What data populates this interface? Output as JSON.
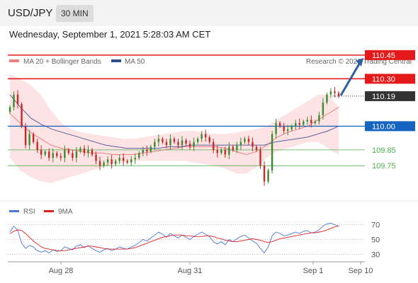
{
  "header": {
    "symbol": "USD/JPY",
    "timeframe": "30 MIN"
  },
  "datetime": "Wednesday, September 1, 2021 5:28:03 AM CET",
  "legend": {
    "ma20_label": "MA 20 + Bollinger Bands",
    "ma50_label": "MA 50",
    "credit": "Research © 2021 Trading Central"
  },
  "colors": {
    "resistance": "#e41a1a",
    "support": "#1565c0",
    "target": "#4caf50",
    "current": "#333333",
    "arrow": "#2e5f9e",
    "ma20": "#f08080",
    "ma50": "#5560a0",
    "band_fill": "#fde3e3",
    "candle_up": "#3a8a2e",
    "candle_down": "#c62828"
  },
  "chart_data": [
    {
      "type": "candlestick",
      "price_range": [
        109.5,
        110.53
      ],
      "x_labels": [
        "Aug 28",
        "Aug 31",
        "Sep 1",
        "Sep 10"
      ],
      "levels": [
        {
          "value": 110.45,
          "label": "110.45",
          "kind": "resistance"
        },
        {
          "value": 110.3,
          "label": "110.30",
          "kind": "resistance"
        },
        {
          "value": 110.19,
          "label": "110.19",
          "kind": "current"
        },
        {
          "value": 110.0,
          "label": "110.00",
          "kind": "support"
        },
        {
          "value": 109.85,
          "label": "109.85",
          "kind": "target"
        },
        {
          "value": 109.75,
          "label": "109.75",
          "kind": "target"
        }
      ],
      "close": [
        110.12,
        110.2,
        110.14,
        110.0,
        109.88,
        109.95,
        109.9,
        109.85,
        109.82,
        109.84,
        109.8,
        109.83,
        109.81,
        109.8,
        109.85,
        109.83,
        109.8,
        109.84,
        109.86,
        109.83,
        109.85,
        109.82,
        109.78,
        109.75,
        109.77,
        109.79,
        109.76,
        109.78,
        109.8,
        109.78,
        109.77,
        109.79,
        109.8,
        109.83,
        109.85,
        109.84,
        109.87,
        109.9,
        109.92,
        109.9,
        109.88,
        109.92,
        109.9,
        109.88,
        109.91,
        109.89,
        109.87,
        109.9,
        109.92,
        109.95,
        109.93,
        109.9,
        109.85,
        109.83,
        109.85,
        109.82,
        109.87,
        109.85,
        109.88,
        109.9,
        109.92,
        109.9,
        109.87,
        109.85,
        109.75,
        109.65,
        109.72,
        109.95,
        110.02,
        110.0,
        109.97,
        109.98,
        110.0,
        110.02,
        110.01,
        110.03,
        110.04,
        110.02,
        110.03,
        110.07,
        110.15,
        110.2,
        110.22,
        110.21,
        110.19
      ],
      "upper_band": [
        110.33,
        110.3,
        110.26,
        110.2,
        110.1,
        110.02,
        109.98,
        109.96,
        109.95,
        109.94,
        109.93,
        109.92,
        109.92,
        109.93,
        109.94,
        109.95,
        109.96,
        109.97,
        109.97,
        109.96,
        109.95,
        109.95,
        109.96,
        109.97,
        109.98,
        110.0,
        110.04,
        110.08,
        110.12,
        110.16,
        110.2,
        110.2,
        110.12
      ],
      "lower_band": [
        109.8,
        109.72,
        109.68,
        109.65,
        109.64,
        109.66,
        109.68,
        109.7,
        109.72,
        109.74,
        109.76,
        109.77,
        109.78,
        109.78,
        109.78,
        109.78,
        109.78,
        109.78,
        109.77,
        109.76,
        109.75,
        109.73,
        109.7,
        109.7,
        109.74,
        109.8,
        109.84,
        109.86,
        109.88,
        109.9,
        109.9,
        109.86,
        109.82
      ],
      "ma20": [
        110.08,
        110.02,
        109.96,
        109.92,
        109.88,
        109.86,
        109.85,
        109.84,
        109.83,
        109.83,
        109.82,
        109.82,
        109.82,
        109.83,
        109.84,
        109.85,
        109.86,
        109.87,
        109.87,
        109.87,
        109.87,
        109.86,
        109.84,
        109.82,
        109.84,
        109.88,
        109.93,
        109.96,
        109.98,
        110.0,
        110.04,
        110.08,
        110.12
      ],
      "ma50": [
        110.2,
        110.12,
        110.05,
        110.01,
        109.98,
        109.96,
        109.94,
        109.92,
        109.9,
        109.88,
        109.87,
        109.86,
        109.86,
        109.86,
        109.86,
        109.87,
        109.87,
        109.88,
        109.88,
        109.88,
        109.88,
        109.88,
        109.88,
        109.88,
        109.88,
        109.9,
        109.91,
        109.92,
        109.93,
        109.95,
        109.97,
        110.0
      ]
    },
    {
      "type": "line",
      "title": "RSI",
      "series": [
        {
          "name": "RSI",
          "values": [
            60,
            68,
            62,
            45,
            38,
            42,
            40,
            35,
            33,
            35,
            32,
            36,
            34,
            35,
            40,
            38,
            36,
            41,
            43,
            39,
            42,
            38,
            35,
            33,
            36,
            38,
            35,
            37,
            40,
            38,
            37,
            40,
            42,
            46,
            50,
            48,
            52,
            56,
            60,
            57,
            53,
            58,
            55,
            52,
            56,
            53,
            50,
            54,
            57,
            60,
            57,
            54,
            47,
            44,
            47,
            43,
            50,
            47,
            51,
            54,
            56,
            52,
            48,
            45,
            38,
            32,
            40,
            55,
            60,
            58,
            55,
            56,
            58,
            60,
            58,
            61,
            62,
            59,
            60,
            63,
            68,
            71,
            72,
            70,
            68
          ]
        },
        {
          "name": "9MA",
          "values": [
            58,
            61,
            63,
            62,
            58,
            53,
            48,
            44,
            40,
            38,
            37,
            36,
            35,
            35,
            35,
            36,
            37,
            38,
            39,
            40,
            41,
            41,
            40,
            39,
            38,
            37,
            37,
            37,
            37,
            37,
            37,
            38,
            39,
            41,
            43,
            45,
            47,
            49,
            51,
            53,
            54,
            55,
            56,
            56,
            56,
            55,
            55,
            54,
            54,
            54,
            55,
            55,
            54,
            52,
            51,
            49,
            48,
            47,
            47,
            48,
            49,
            50,
            51,
            50,
            49,
            47,
            46,
            47,
            49,
            51,
            52,
            53,
            54,
            55,
            56,
            57,
            58,
            59,
            59,
            60,
            61,
            63,
            65,
            67,
            68
          ]
        }
      ],
      "ylim": [
        20,
        80
      ],
      "y_ticks": [
        70,
        50,
        30
      ]
    }
  ]
}
